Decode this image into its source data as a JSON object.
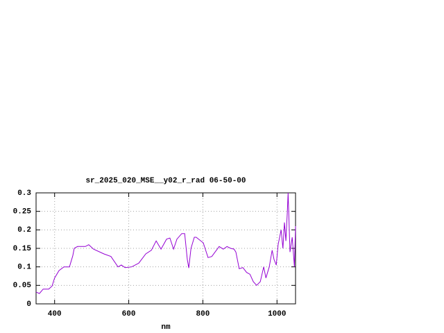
{
  "chart_data": {
    "type": "line",
    "title": "sr_2025_020_MSE__y02_r_rad 06-50-00",
    "x_label": "nm",
    "xlim": [
      350,
      1050
    ],
    "xticks": [
      400,
      600,
      800,
      1000
    ],
    "ylim": [
      0,
      0.3
    ],
    "yticks": [
      0,
      0.05,
      0.1,
      0.15,
      0.2,
      0.25,
      0.3
    ],
    "grid": true,
    "series": [
      {
        "name": "sr_2025_020_MSE__y02_r_rad",
        "color": "#9400d3",
        "x": [
          350,
          359,
          369,
          384,
          393,
          400,
          412,
          425,
          440,
          449,
          453,
          462,
          483,
          492,
          505,
          533,
          552,
          571,
          580,
          590,
          608,
          627,
          646,
          661,
          674,
          687,
          702,
          711,
          721,
          730,
          743,
          751,
          758,
          762,
          768,
          777,
          782,
          801,
          814,
          824,
          844,
          855,
          865,
          875,
          884,
          889,
          898,
          908,
          918,
          927,
          936,
          945,
          955,
          964,
          970,
          979,
          987,
          992,
          998,
          1003,
          1011,
          1016,
          1020,
          1024,
          1028,
          1030,
          1035,
          1041,
          1047,
          1050
        ],
        "values": [
          0.032,
          0.028,
          0.04,
          0.04,
          0.048,
          0.07,
          0.09,
          0.1,
          0.1,
          0.13,
          0.15,
          0.155,
          0.155,
          0.16,
          0.148,
          0.135,
          0.128,
          0.1,
          0.105,
          0.098,
          0.1,
          0.11,
          0.135,
          0.145,
          0.17,
          0.148,
          0.175,
          0.178,
          0.148,
          0.175,
          0.19,
          0.19,
          0.12,
          0.097,
          0.15,
          0.18,
          0.18,
          0.165,
          0.125,
          0.128,
          0.155,
          0.148,
          0.155,
          0.15,
          0.148,
          0.14,
          0.095,
          0.098,
          0.085,
          0.08,
          0.06,
          0.05,
          0.06,
          0.1,
          0.07,
          0.1,
          0.145,
          0.12,
          0.105,
          0.16,
          0.2,
          0.15,
          0.22,
          0.17,
          0.25,
          0.3,
          0.14,
          0.18,
          0.1,
          0.21
        ]
      }
    ]
  }
}
